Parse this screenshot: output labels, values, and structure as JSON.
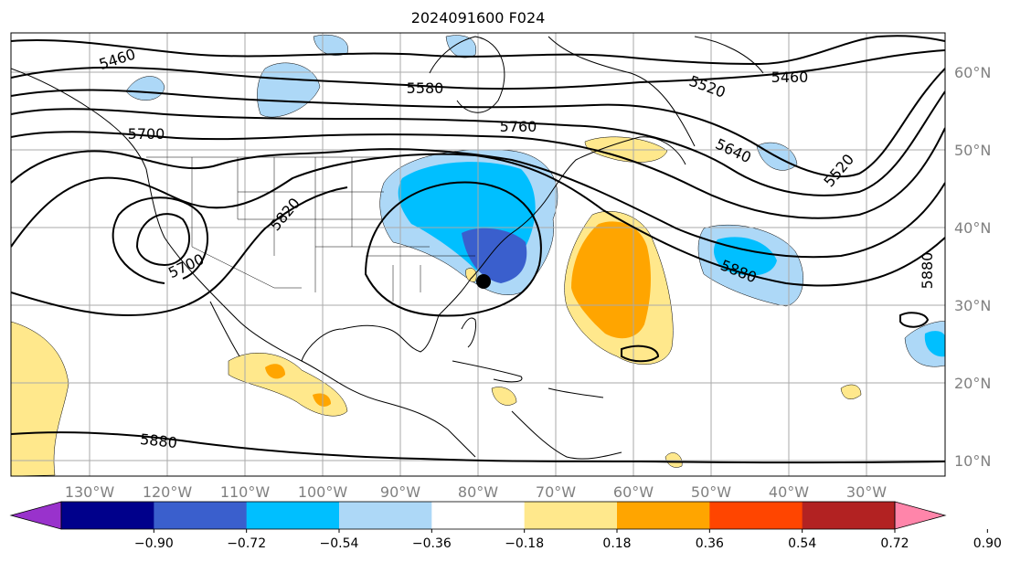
{
  "title": "2024091600 F024",
  "map": {
    "lon_labels": [
      "130°W",
      "120°W",
      "110°W",
      "100°W",
      "90°W",
      "80°W",
      "70°W",
      "60°W",
      "50°W",
      "40°W",
      "30°W"
    ],
    "lat_labels": [
      "60°N",
      "50°N",
      "40°N",
      "30°N",
      "20°N",
      "10°N"
    ],
    "contour_labels": [
      "5460",
      "5580",
      "5520",
      "5460",
      "5700",
      "5760",
      "5640",
      "5520",
      "5820",
      "5700",
      "5880",
      "5880",
      "5880"
    ],
    "storm_marker": "black circle"
  },
  "colorbar": {
    "ticks": [
      "−0.90",
      "−0.72",
      "−0.54",
      "−0.36",
      "−0.18",
      "0.18",
      "0.36",
      "0.54",
      "0.72",
      "0.90"
    ],
    "colors": [
      "#9932cc",
      "#00008b",
      "#3a5fcd",
      "#00bfff",
      "#add8f7",
      "#ffffff",
      "#ffe88c",
      "#ffa500",
      "#ff4500",
      "#b22222",
      "#ff85aa"
    ]
  }
}
